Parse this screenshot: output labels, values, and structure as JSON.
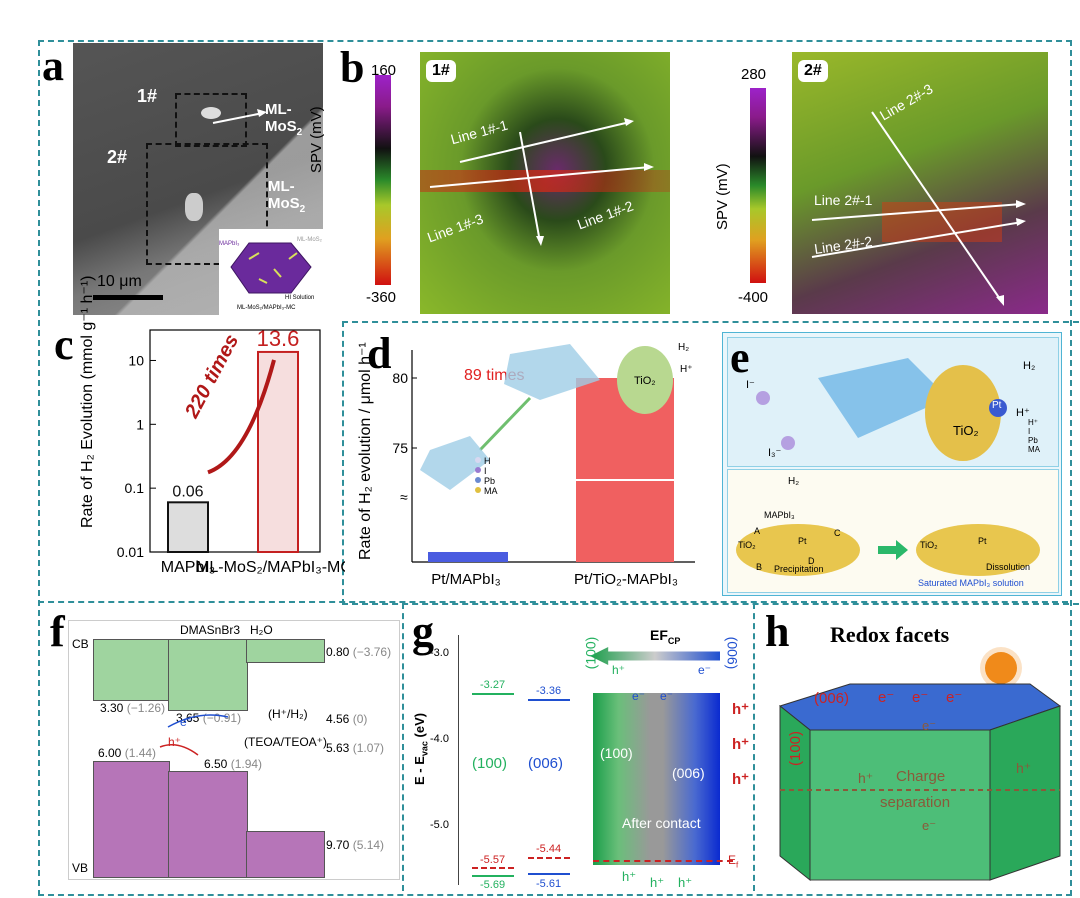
{
  "panels": {
    "a": {
      "letter": "a",
      "label_1": "1#",
      "label_2": "2#",
      "mos2_1": "ML-MoS",
      "mos2_2": "ML-MoS",
      "sub2": "2",
      "scale": "10 μm",
      "inset_caption": "ML-MoS₂/MAPbI₃-MC",
      "inset_hi": "HI Solution",
      "inset_mapbi": "MAPbI₃",
      "inset_mos": "ML-MoS₂"
    },
    "b": {
      "letter": "b",
      "cb1_top": "160",
      "cb1_bottom": "-360",
      "cb2_top": "280",
      "cb2_bottom": "-400",
      "spv": "SPV (mV)",
      "map1": "1#",
      "map2": "2#",
      "line11": "Line 1#-1",
      "line12": "Line 1#-2",
      "line13": "Line 1#-3",
      "line21": "Line 2#-1",
      "line22": "Line 2#-2",
      "line23": "Line 2#-3"
    },
    "c": {
      "letter": "c",
      "ylabel": "Rate of H₂ Evolution (mmol g⁻¹ h⁻¹)",
      "times": "220 times",
      "ticks": [
        "10",
        "1",
        "0.1",
        "0.01"
      ]
    },
    "d": {
      "letter": "d",
      "ylabel": "Rate of H₂ evolution / μmol h⁻¹",
      "times": "89 times",
      "ticks": [
        "80",
        "75"
      ],
      "tio2": "TiO₂",
      "h2": "H₂",
      "hplus": "H⁺",
      "legend": [
        "H",
        "I",
        "Pb",
        "MA"
      ]
    },
    "e": {
      "letter": "e",
      "tio2": "TiO₂",
      "pt": "Pt",
      "h2": "H₂",
      "hplus": "H⁺",
      "iminus": "I⁻",
      "i3": "I₃⁻",
      "legend": [
        "H⁺",
        "I",
        "Pb",
        "MA"
      ],
      "mapbi": "MAPbI₃",
      "precip": "Precipitation",
      "dissol": "Dissolution",
      "saturated": "Saturated MAPbI₃ solution",
      "a": "A",
      "b": "B",
      "c": "C",
      "d": "D"
    },
    "f": {
      "letter": "f",
      "cb": "CB",
      "vb": "VB",
      "dmas": "DMASnBr3",
      "h2o": "H₂O",
      "v1": "3.30",
      "v1p": "(−1.26)",
      "v2": "3.65",
      "v2p": "(−0.91)",
      "v3": "0.80",
      "v3p": "(−3.76)",
      "v4": "6.00",
      "v4p": "(1.44)",
      "v5": "6.50",
      "v5p": "(1.94)",
      "v6": "9.70",
      "v6p": "(5.14)",
      "hh2": "(H⁺/H₂)",
      "hh2v": "4.56",
      "hh2p": "(0)",
      "teoa": "(TEOA/TEOA⁺)",
      "teoav": "5.63",
      "teoap": "(1.07)",
      "e": "e⁻",
      "h": "h⁺"
    },
    "g": {
      "letter": "g",
      "ylabel": "E - E",
      "ylabel_sub": "vac",
      "ylabel_unit": "(eV)",
      "ticks": [
        "-3.0",
        "-4.0",
        "-5.0"
      ],
      "f100": "(100)",
      "f006": "(006)",
      "cb100": "-3.27",
      "cb006": "-3.36",
      "vb100a": "-5.57",
      "vb100b": "-5.69",
      "vb006a": "-5.44",
      "vb006b": "-5.61",
      "efcp": "EF",
      "efcp_sub": "CP",
      "top100": "(100)",
      "top006": "(006)",
      "after": "After contact",
      "ef": "E",
      "ef_sub": "f",
      "e": "e⁻",
      "h": "h⁺"
    },
    "h": {
      "letter": "h",
      "title": "Redox facets",
      "f006": "(006)",
      "f100": "(100)",
      "charge": "Charge",
      "sep": "separation",
      "e": "e⁻",
      "h": "h⁺"
    }
  },
  "chart_data": [
    {
      "type": "bar",
      "categories": [
        "MAPbI₃",
        "ML-MoS₂/MAPbI₃-MCs"
      ],
      "values": [
        0.06,
        13.6
      ],
      "ylim": [
        0.01,
        30
      ],
      "scale": "log"
    },
    {
      "type": "bar",
      "categories": [
        "Pt/MAPbI₃",
        "Pt/TiO₂-MAPbI₃"
      ],
      "values": [
        0.9,
        80
      ],
      "scale": "broken"
    }
  ],
  "colors": {
    "frame": "#2f8f9a",
    "red": "#cc2222",
    "green": "#23b15f",
    "blue": "#1f4fd0",
    "purple": "#b675b8",
    "cbgreen": "#9fd49f"
  }
}
